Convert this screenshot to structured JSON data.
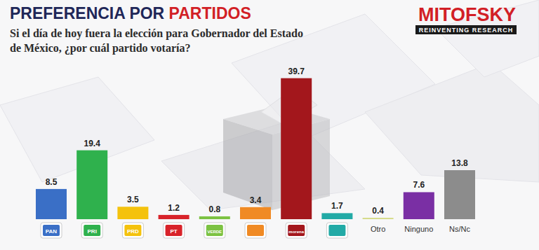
{
  "chart_data": {
    "type": "bar",
    "title": "PREFERENCIA POR PARTIDOS",
    "subtitle": "Si el día de hoy fuera la elección para Gobernador del Estado de México, ¿por cuál partido votaría?",
    "annotations": [
      "MITOFSKY",
      "REINVENTING RESEARCH"
    ],
    "categories": [
      "PAN",
      "PRI",
      "PRD",
      "PT",
      "VERDE",
      null,
      "morena",
      null,
      "Otro",
      "Ninguno",
      "Ns/Nc"
    ],
    "values": [
      8.5,
      19.4,
      3.5,
      1.2,
      0.8,
      3.4,
      39.7,
      1.7,
      0.4,
      7.6,
      13.8
    ],
    "colors": [
      "#3a6fc6",
      "#2fb14d",
      "#f4c20d",
      "#d8232a",
      "#7cc242",
      "#f08a24",
      "#a3171c",
      "#22aaa6",
      "#d6dc8c",
      "#7a2fa4",
      "#8c8c8c"
    ],
    "ylim": [
      0,
      42
    ],
    "grid": false,
    "data_labels": true,
    "tick_labels": "x"
  }
}
